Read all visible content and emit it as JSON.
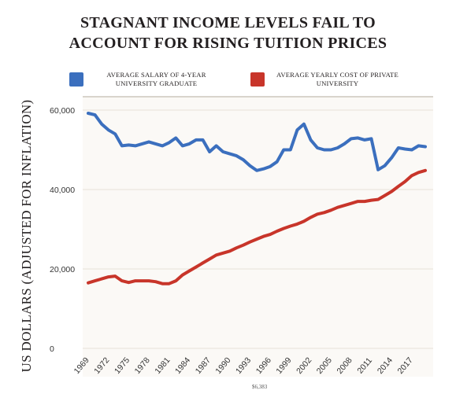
{
  "chart_data": {
    "type": "line",
    "title_line1": "STAGNANT INCOME LEVELS FAIL TO",
    "title_line2": "ACCOUNT FOR RISING TUITION PRICES",
    "ylabel": "US DOLLARS (ADJUSTED FOR INFLATION)",
    "ylim": [
      0,
      60000
    ],
    "yticks": [
      {
        "value": 0,
        "label": "0"
      },
      {
        "value": 20000,
        "label": "20,000"
      },
      {
        "value": 40000,
        "label": "40,000"
      },
      {
        "value": 60000,
        "label": "60,000"
      }
    ],
    "xlim": [
      1969,
      2019
    ],
    "xticks": [
      1969,
      1972,
      1975,
      1978,
      1981,
      1984,
      1987,
      1990,
      1993,
      1996,
      1999,
      2002,
      2005,
      2008,
      2011,
      2014,
      2017
    ],
    "grid": true,
    "legend_position": "top",
    "x": [
      1969,
      1970,
      1971,
      1972,
      1973,
      1974,
      1975,
      1976,
      1977,
      1978,
      1979,
      1980,
      1981,
      1982,
      1983,
      1984,
      1985,
      1986,
      1987,
      1988,
      1989,
      1990,
      1991,
      1992,
      1993,
      1994,
      1995,
      1996,
      1997,
      1998,
      1999,
      2000,
      2001,
      2002,
      2003,
      2004,
      2005,
      2006,
      2007,
      2008,
      2009,
      2010,
      2011,
      2012,
      2013,
      2014,
      2015,
      2016,
      2017,
      2018,
      2019
    ],
    "series": [
      {
        "name": "AVERAGE SALARY OF 4-YEAR UNIVERSITY GRADUATE",
        "color": "#3b6fbe",
        "values": [
          59200,
          58800,
          56500,
          55000,
          54000,
          51000,
          51200,
          51000,
          51500,
          52000,
          51500,
          51000,
          51800,
          53000,
          51000,
          51500,
          52500,
          52500,
          49500,
          51000,
          49500,
          49000,
          48500,
          47500,
          46000,
          44800,
          45200,
          45800,
          47000,
          50000,
          50000,
          55000,
          56500,
          52500,
          50500,
          50000,
          50000,
          50500,
          51500,
          52800,
          53000,
          52500,
          52800,
          45000,
          46000,
          48000,
          50500,
          50200,
          50000,
          51000,
          50800
        ]
      },
      {
        "name": "AVERAGE YEARLY COST OF PRIVATE UNIVERSITY",
        "color": "#c8352a",
        "values": [
          16500,
          17000,
          17500,
          18000,
          18200,
          17000,
          16600,
          17000,
          17000,
          17000,
          16800,
          16300,
          16300,
          17000,
          18500,
          19500,
          20500,
          21500,
          22500,
          23500,
          24000,
          24500,
          25300,
          26000,
          26800,
          27500,
          28200,
          28700,
          29500,
          30200,
          30800,
          31300,
          32000,
          33000,
          33800,
          34200,
          34800,
          35500,
          36000,
          36500,
          37000,
          37000,
          37300,
          37500,
          38500,
          39500,
          40800,
          42000,
          43500,
          44300,
          44800
        ]
      }
    ]
  },
  "footnote": "$6,383"
}
